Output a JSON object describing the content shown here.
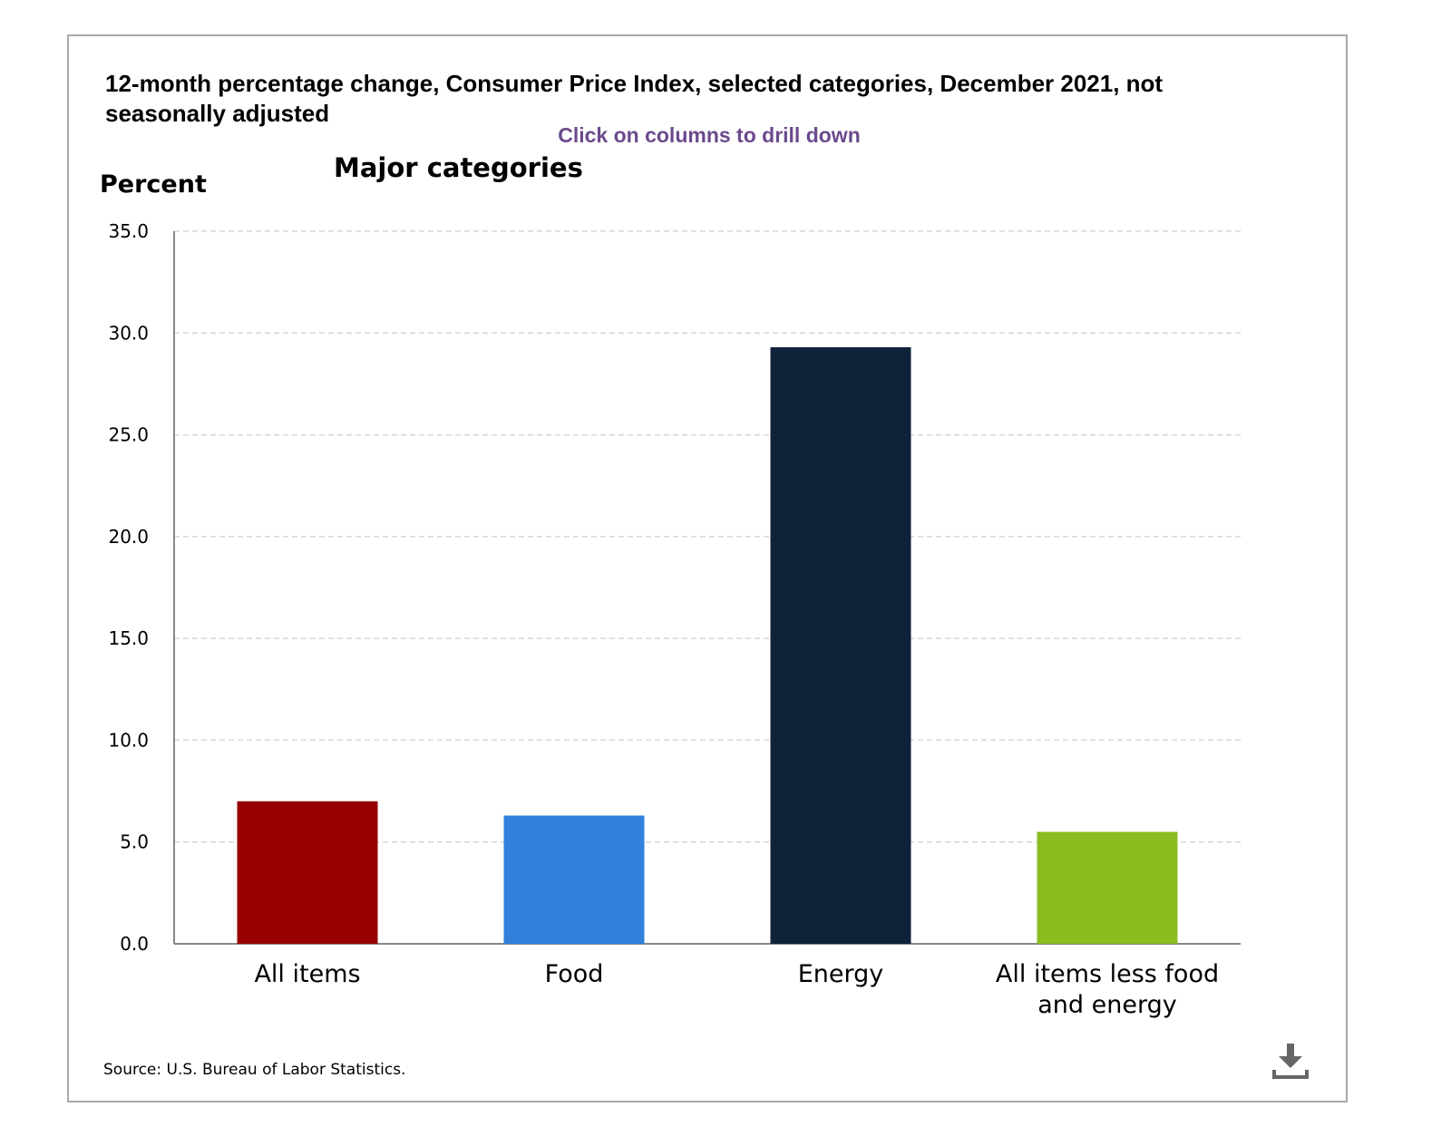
{
  "chart_data": {
    "type": "bar",
    "title": "12-month percentage change, Consumer Price Index, selected categories, December 2021, not seasonally adjusted",
    "subtitle": "Major categories",
    "hint": "Click on columns to drill down",
    "ylabel": "Percent",
    "xlabel": "",
    "ylim": [
      0,
      35
    ],
    "yticks": [
      "0.0",
      "5.0",
      "10.0",
      "15.0",
      "20.0",
      "25.0",
      "30.0",
      "35.0"
    ],
    "ytick_values": [
      0,
      5,
      10,
      15,
      20,
      25,
      30,
      35
    ],
    "grid": true,
    "categories": [
      [
        "All items"
      ],
      [
        "Food"
      ],
      [
        "Energy"
      ],
      [
        "All items less food",
        "and energy"
      ]
    ],
    "values": [
      7.0,
      6.3,
      29.3,
      5.5
    ],
    "colors": [
      "#960000",
      "#3080dc",
      "#0f223a",
      "#8cbc20"
    ]
  },
  "source": "Source: U.S. Bureau of Labor Statistics.",
  "icons": {
    "download": "download-icon"
  }
}
